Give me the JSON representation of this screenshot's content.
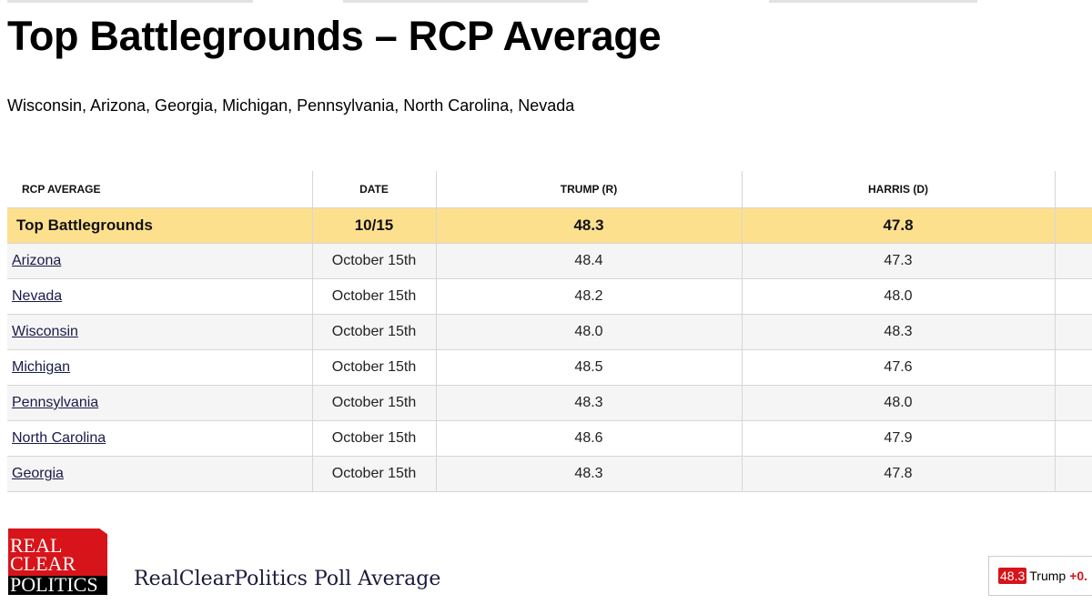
{
  "title": "Top Battlegrounds – RCP Average",
  "subtitle": "Wisconsin, Arizona, Georgia, Michigan, Pennsylvania, North Carolina, Nevada",
  "table": {
    "headers": [
      "RCP AVERAGE",
      "DATE",
      "TRUMP (R)",
      "HARRIS (D)",
      ""
    ],
    "average": {
      "name": "Top Battlegrounds",
      "date": "10/15",
      "trump": "48.3",
      "harris": "47.8"
    },
    "rows": [
      {
        "name": "Arizona",
        "date": "October 15th",
        "trump": "48.4",
        "harris": "47.3"
      },
      {
        "name": "Nevada",
        "date": "October 15th",
        "trump": "48.2",
        "harris": "48.0"
      },
      {
        "name": "Wisconsin",
        "date": "October 15th",
        "trump": "48.0",
        "harris": "48.3"
      },
      {
        "name": "Michigan",
        "date": "October 15th",
        "trump": "48.5",
        "harris": "47.6"
      },
      {
        "name": "Pennsylvania",
        "date": "October 15th",
        "trump": "48.3",
        "harris": "48.0"
      },
      {
        "name": "North Carolina",
        "date": "October 15th",
        "trump": "48.6",
        "harris": "47.9"
      },
      {
        "name": "Georgia",
        "date": "October 15th",
        "trump": "48.3",
        "harris": "47.8"
      }
    ]
  },
  "footer": {
    "logo_lines": [
      "REAL",
      "CLEAR",
      "POLITICS"
    ],
    "title": "RealClearPolitics Poll Average",
    "ticker": {
      "value": "48.3",
      "candidate": "Trump",
      "spread": "+0."
    }
  },
  "colors": {
    "highlight": "#fde08e",
    "brand_red": "#d7141a"
  }
}
